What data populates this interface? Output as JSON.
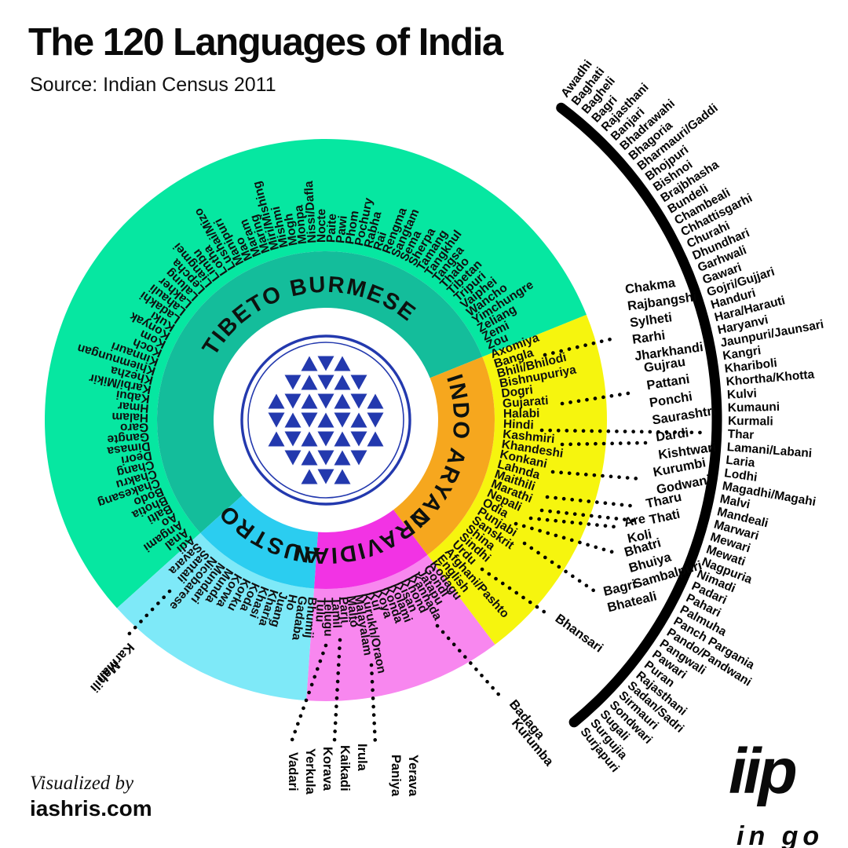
{
  "header": {
    "title": "The 120 Languages of India",
    "source": "Source: Indian Census 2011"
  },
  "footer": {
    "visualized_by": "Visualized by",
    "site": "iashris.com",
    "logo_text": "iip",
    "logo_subtext": "in go"
  },
  "chart_data": {
    "type": "radial-language-wheel",
    "title": "The 120 Languages of India",
    "center_symbol": "sri-yantra",
    "center_symbol_color": "#2339AE",
    "families": [
      {
        "name": "TIBETO BURMESE",
        "color": "#06E7A1",
        "ring_color": "#14BD9B",
        "languages": [
          "Adi",
          "Anal",
          "Angami",
          "Ao",
          "Balti",
          "Bhotia",
          "Bodo",
          "Chakesang",
          "Chakru",
          "Chang",
          "Deori",
          "Dimasa",
          "Gangte",
          "Garo",
          "Halam",
          "Hmar",
          "Kabui",
          "Karbi/Mikir",
          "Khezha",
          "Khiemnungan",
          "Kinnauri",
          "Koch",
          "Kom",
          "Konyak",
          "Kuki",
          "Ladakhi",
          "Lahauli",
          "Lakher",
          "Lalung",
          "Lepcha",
          "Liangmei",
          "Limbu",
          "Lotha",
          "Lushai/Mizo",
          "Manipuri",
          "Mao",
          "Maram",
          "Maring",
          "Miri/Mishing",
          "Mishmi",
          "Mogh",
          "Monpa",
          "Nissi/Dafla",
          "Nocte",
          "Paite",
          "Pawi",
          "Phom",
          "Pochury",
          "Rabha",
          "Rai",
          "Rengma",
          "Sangtam",
          "Sema",
          "Sherpa",
          "Tamang",
          "Tangkhul",
          "Tangsa",
          "Thado",
          "Tibetan",
          "Tripuri",
          "Vaiphei",
          "Wancho",
          "Yimchungre",
          "Zeliang",
          "Zemi",
          "Zou"
        ]
      },
      {
        "name": "INDO ARYAN",
        "color": "#F6F50E",
        "ring_color": "#F6A71E",
        "languages": [
          "Axomiya",
          "Bangla",
          "Bhili/Bhilodi",
          "Bishnupuriya",
          "Dogri",
          "Gujarati",
          "Halabi",
          "Hindi",
          "Kashmiri",
          "Khandeshi",
          "Konkani",
          "Lahnda",
          "Maithili",
          "Marathi",
          "Nepali",
          "Odia",
          "Punjabi",
          "Sanskrit",
          "Shina",
          "Sindhi",
          "Urdu",
          "Afghani/Pashto",
          "English"
        ]
      },
      {
        "name": "DRAVIDIAN",
        "color": "#F887EF",
        "ring_color": "#F233E4",
        "languages": [
          "Kodagu",
          "Gondi",
          "Jatapu",
          "Kannada",
          "Khond",
          "Kisan",
          "Kolami",
          "Konda",
          "Koya",
          "Kui",
          "Kurukh/Oraon",
          "Malayalam",
          "Malto",
          "Parji",
          "Tamil",
          "Telugu",
          "Tulu"
        ]
      },
      {
        "name": "AUSTRO",
        "color": "#7EE9F8",
        "ring_color": "#2BCDF0",
        "languages": [
          "Bhumij",
          "Gadaba",
          "Ho",
          "Juang",
          "Kharia",
          "Khasi",
          "Koda",
          "Korku",
          "Korwa",
          "Munda",
          "Mundari",
          "Nicobarese",
          "Santali",
          "Savara"
        ]
      }
    ],
    "hindi_variants_arc": [
      "Awadhi",
      "Baghati",
      "Bagheli",
      "Bagri",
      "Rajasthani",
      "Banjari",
      "Bhadrawahi",
      "Bhagoria",
      "Bharmauri/Gaddi",
      "Bhojpuri",
      "Bishnoi",
      "Brajbhasha",
      "Bundeli",
      "Chambeali",
      "Chhattisgarhi",
      "Churahi",
      "Dhundhari",
      "Garhwali",
      "Gawari",
      "Gojri/Gujjari",
      "Handuri",
      "Hara/Harauti",
      "Haryanvi",
      "Jaunpuri/Jaunsari",
      "Kangri",
      "Khariboli",
      "Khortha/Khotta",
      "Kulvi",
      "Kumauni",
      "Kurmali",
      "Thar",
      "Lamani/Labani",
      "Laria",
      "Lodhi",
      "Magadhi/Magahi",
      "Malvi",
      "Mandeali",
      "Marwari",
      "Mewari",
      "Mewati",
      "Nagpuria",
      "Nimadi",
      "Padari",
      "Pahari",
      "Palmuha",
      "Panch Pargania",
      "Pando/Pandwani",
      "Pangwali",
      "Pawari",
      "Puran",
      "Rajasthani",
      "Sadan/Sadri",
      "Sirmauri",
      "Sondwari",
      "Sugali",
      "Surgujia",
      "Surjapuri"
    ],
    "callouts": [
      {
        "id": "bangla",
        "lines": [
          "Chakma",
          "Rajbangshi",
          "Sylheti",
          "Rarhi",
          "Jharkhandi"
        ]
      },
      {
        "id": "gujarati",
        "lines": [
          "Gujrau",
          "Pattani",
          "Ponchi",
          "Saurashtri"
        ]
      },
      {
        "id": "kashmiri",
        "lines": [
          "Dardi",
          "Kishtwari"
        ]
      },
      {
        "id": "konkani",
        "lines": [
          "Kurumbi",
          "Godwani"
        ]
      },
      {
        "id": "maithili",
        "lines": [
          "Tharu",
          "Thati"
        ]
      },
      {
        "id": "nepali",
        "lines": [
          "Are",
          "Koli"
        ]
      },
      {
        "id": "odia",
        "lines": [
          "Bhatri",
          "Bhuiya",
          "Sambalpuri"
        ]
      },
      {
        "id": "punjabi",
        "lines": [
          "Bagri",
          "Bhateali"
        ]
      },
      {
        "id": "urdu",
        "lines": [
          "Bhansari"
        ]
      },
      {
        "id": "santali",
        "lines": [
          "Karmali",
          "Mahili"
        ]
      },
      {
        "id": "kannada",
        "lines": [
          "Badaga",
          "Kurumba"
        ]
      },
      {
        "id": "malayalam",
        "lines": [
          "Paniya",
          "Yerava"
        ]
      },
      {
        "id": "tamil",
        "lines": [
          "Yerkula",
          "Korava",
          "Kaikadi",
          "Irula"
        ]
      },
      {
        "id": "telugu",
        "lines": [
          "Vadari"
        ]
      }
    ]
  }
}
